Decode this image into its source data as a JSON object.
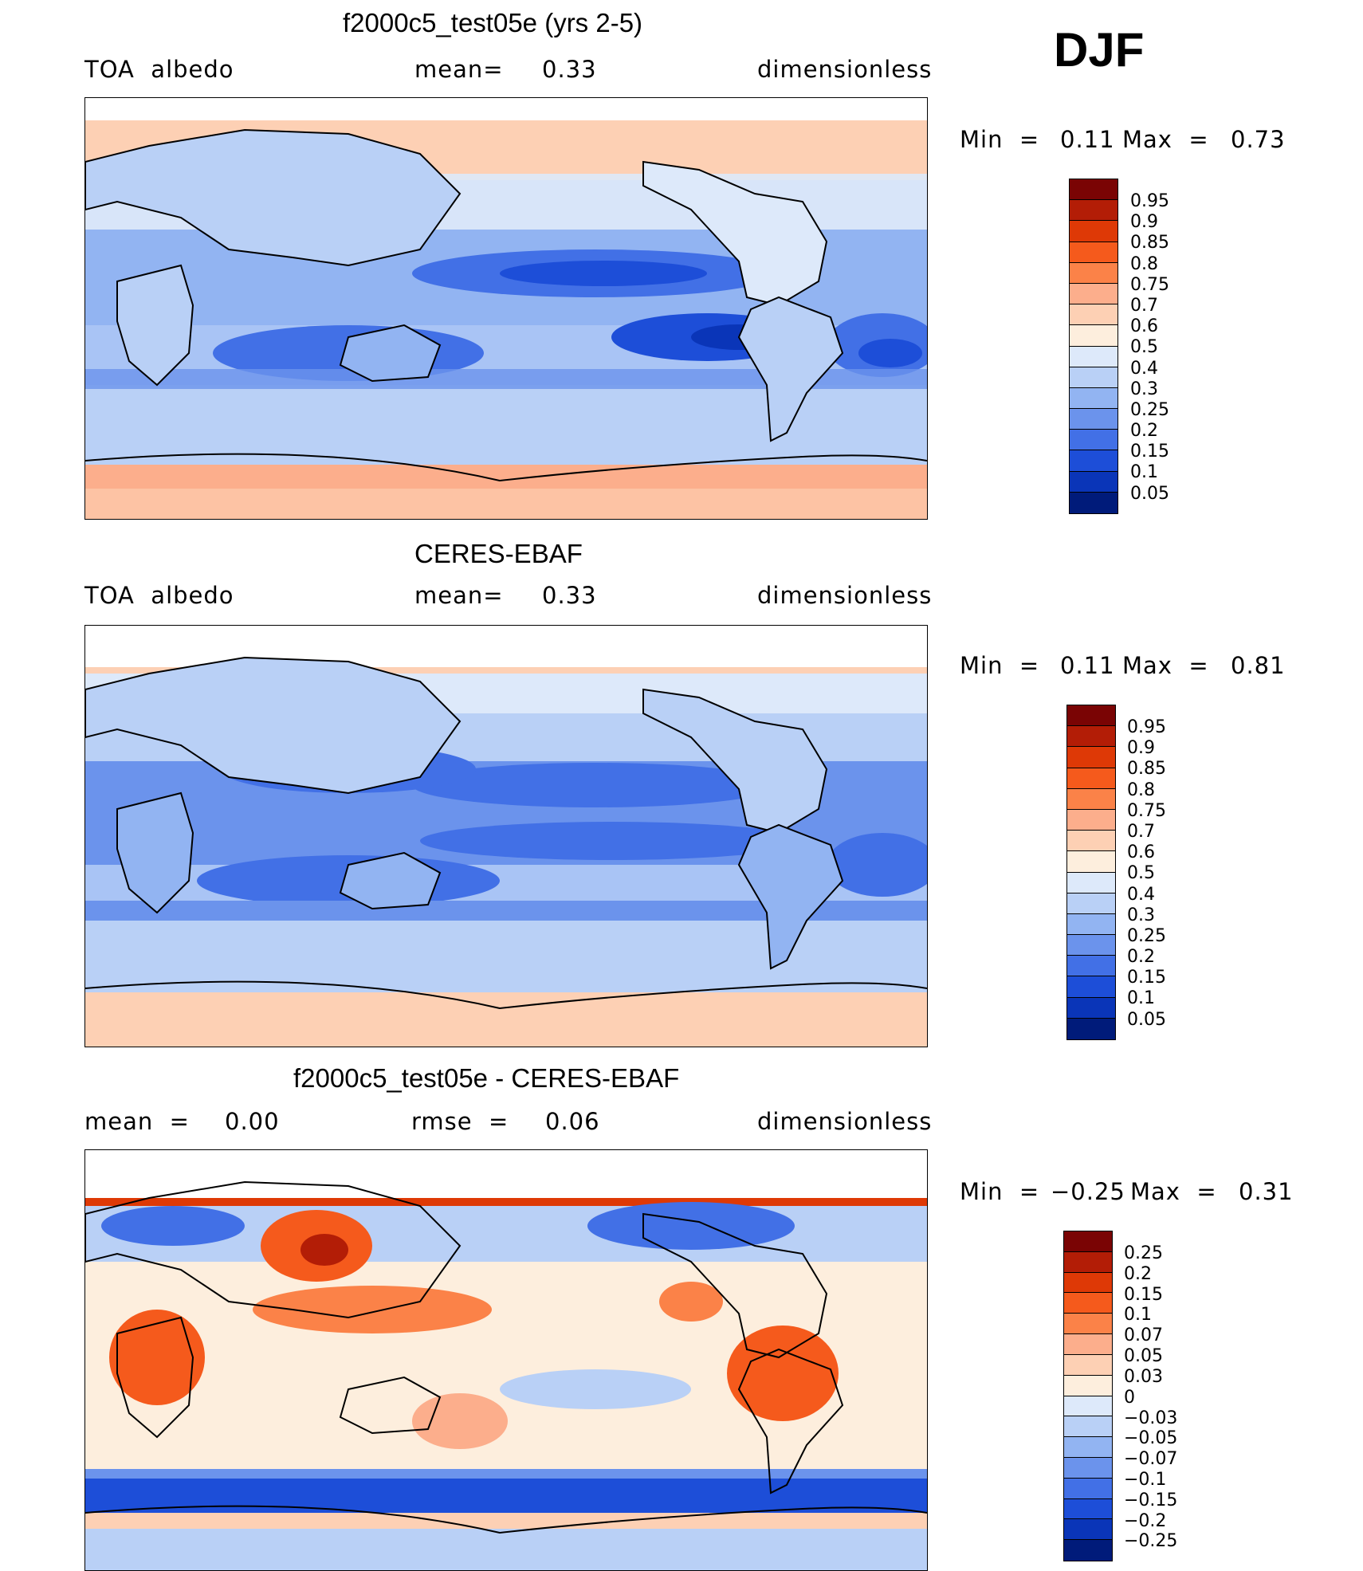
{
  "season": "DJF",
  "panels": [
    {
      "title": "f2000c5_test05e (yrs 2-5)",
      "left_label": "TOA  albedo",
      "center_label": "mean=",
      "center_value": "0.33",
      "right_label": "dimensionless",
      "min_label": "Min  =",
      "min_value": "0.11",
      "max_label": "Max  =",
      "max_value": "0.73",
      "colorbar_labels": [
        "0.95",
        "0.9",
        "0.85",
        "0.8",
        "0.75",
        "0.7",
        "0.6",
        "0.5",
        "0.4",
        "0.3",
        "0.25",
        "0.2",
        "0.15",
        "0.1",
        "0.05"
      ]
    },
    {
      "title": "CERES-EBAF",
      "left_label": "TOA  albedo",
      "center_label": "mean=",
      "center_value": "0.33",
      "right_label": "dimensionless",
      "min_label": "Min  =",
      "min_value": "0.11",
      "max_label": "Max  =",
      "max_value": "0.81",
      "colorbar_labels": [
        "0.95",
        "0.9",
        "0.85",
        "0.8",
        "0.75",
        "0.7",
        "0.6",
        "0.5",
        "0.4",
        "0.3",
        "0.25",
        "0.2",
        "0.15",
        "0.1",
        "0.05"
      ]
    },
    {
      "title": "f2000c5_test05e - CERES-EBAF",
      "left_label": "mean  =",
      "left_value": "0.00",
      "center_label": "rmse  =",
      "center_value": "0.06",
      "right_label": "dimensionless",
      "min_label": "Min  =",
      "min_value": "−0.25",
      "max_label": "Max  =",
      "max_value": "0.31",
      "colorbar_labels": [
        "0.25",
        "0.2",
        "0.15",
        "0.1",
        "0.07",
        "0.05",
        "0.03",
        "0",
        "−0.03",
        "−0.05",
        "−0.07",
        "−0.1",
        "−0.15",
        "−0.2",
        "−0.25"
      ]
    }
  ],
  "colors": {
    "seq_bar": [
      "#7a0404",
      "#b31d06",
      "#de3906",
      "#f55a1c",
      "#fb8248",
      "#fcae8c",
      "#fdd0b4",
      "#fdeedd",
      "#dde9fa",
      "#b9d0f6",
      "#92b4f2",
      "#6b93ec",
      "#4270e6",
      "#1d4ed8",
      "#0a35b8",
      "#001b7a"
    ],
    "diff_bar": [
      "#7a0404",
      "#b31d06",
      "#de3906",
      "#f55a1c",
      "#fb8248",
      "#fcae8c",
      "#fdd0b4",
      "#fdeedd",
      "#dde9fa",
      "#b9d0f6",
      "#92b4f2",
      "#6b93ec",
      "#4270e6",
      "#1d4ed8",
      "#0a35b8",
      "#001b7a"
    ]
  }
}
